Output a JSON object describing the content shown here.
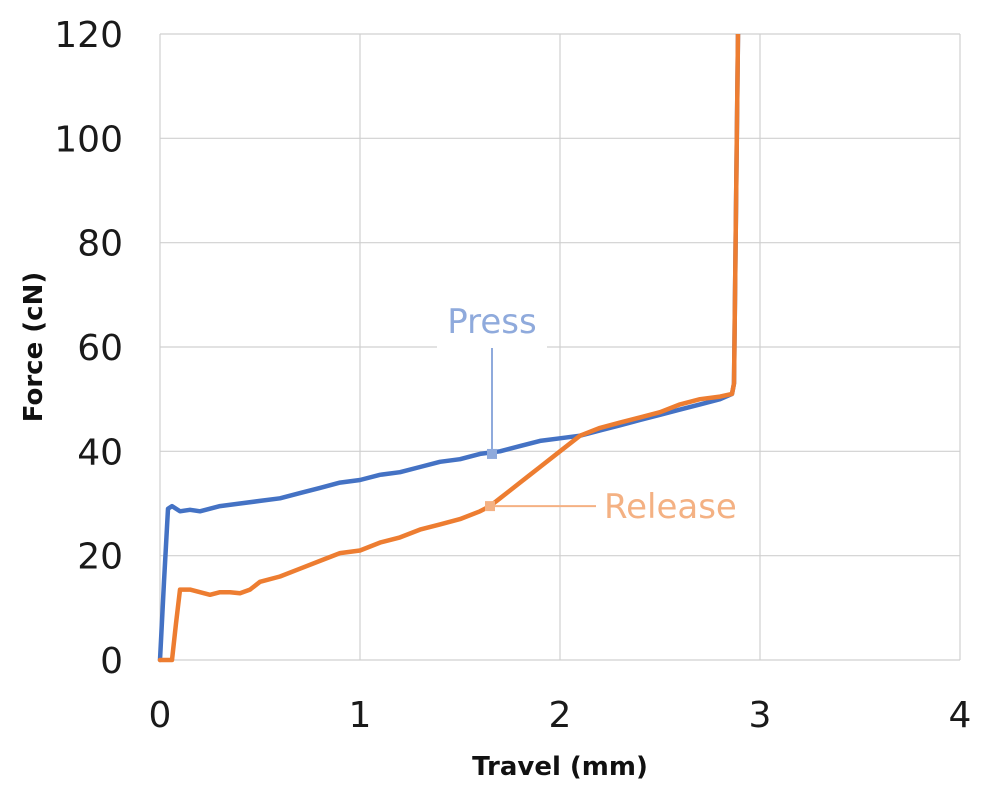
{
  "chart_data": {
    "type": "line",
    "title": "",
    "xlabel": "Travel (mm)",
    "ylabel": "Force (cN)",
    "xlim": [
      0,
      4
    ],
    "ylim": [
      0,
      120
    ],
    "x_ticks": [
      0,
      1,
      2,
      3,
      4
    ],
    "y_ticks": [
      0,
      20,
      40,
      60,
      80,
      100,
      120
    ],
    "grid": true,
    "legend": "none",
    "series": [
      {
        "color": "#4472C4",
        "x": [
          0.0,
          0.02,
          0.04,
          0.06,
          0.1,
          0.15,
          0.2,
          0.3,
          0.4,
          0.5,
          0.6,
          0.7,
          0.8,
          0.9,
          1.0,
          1.1,
          1.2,
          1.3,
          1.4,
          1.5,
          1.6,
          1.7,
          1.8,
          1.9,
          2.0,
          2.1,
          2.2,
          2.3,
          2.4,
          2.5,
          2.6,
          2.7,
          2.8,
          2.86,
          2.87,
          2.89
        ],
        "y": [
          0,
          15,
          29,
          29.5,
          28.5,
          28.8,
          28.5,
          29.5,
          30,
          30.5,
          31,
          32,
          33,
          34,
          34.5,
          35.5,
          36,
          37,
          38,
          38.5,
          39.5,
          40,
          41,
          42,
          42.5,
          43,
          44,
          45,
          46,
          47,
          48,
          49,
          50,
          51,
          53,
          120
        ]
      },
      {
        "color": "#ED7D31",
        "x": [
          0.0,
          0.06,
          0.08,
          0.1,
          0.15,
          0.2,
          0.25,
          0.3,
          0.35,
          0.4,
          0.45,
          0.5,
          0.6,
          0.7,
          0.8,
          0.9,
          1.0,
          1.1,
          1.2,
          1.3,
          1.4,
          1.5,
          1.6,
          1.65,
          1.7,
          1.75,
          1.8,
          1.85,
          1.9,
          2.0,
          2.1,
          2.2,
          2.3,
          2.4,
          2.5,
          2.6,
          2.7,
          2.8,
          2.86,
          2.87,
          2.89
        ],
        "y": [
          0,
          0,
          7,
          13.5,
          13.5,
          13,
          12.5,
          13,
          13,
          12.8,
          13.5,
          15,
          16,
          17.5,
          19,
          20.5,
          21,
          22.5,
          23.5,
          25,
          26,
          27,
          28.5,
          29.5,
          31,
          32.5,
          34,
          35.5,
          37,
          40,
          43,
          44.5,
          45.5,
          46.5,
          47.5,
          49,
          50,
          50.5,
          51,
          53,
          120
        ]
      }
    ],
    "annotations": [
      {
        "text": "Press",
        "color": "#8FAADC",
        "x": 1.66,
        "y": 39.5
      },
      {
        "text": "Release",
        "color": "#F4B183",
        "x": 1.65,
        "y": 29.5
      }
    ]
  }
}
